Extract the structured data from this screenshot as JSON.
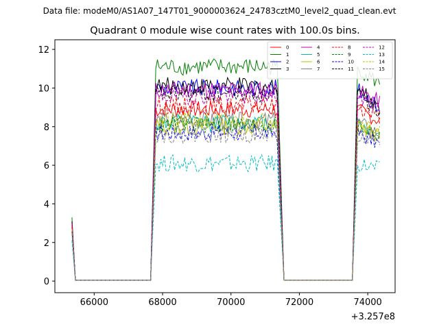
{
  "suptitle": "Data file: modeM0/AS1A07_147T01_9000003624_24783cztM0_level2_quad_clean.evt",
  "chart_data": {
    "type": "line",
    "title": "Quadrant 0 module wise count rates with 100.0s bins.",
    "xlabel": "",
    "ylabel": "",
    "x_offset_label": "+3.257e8",
    "xlim": [
      64850,
      74800
    ],
    "ylim": [
      -0.6,
      12.5
    ],
    "x_ticks": [
      66000,
      68000,
      70000,
      72000,
      74000
    ],
    "x_tick_labels": [
      "66000",
      "68000",
      "70000",
      "72000",
      "74000"
    ],
    "y_ticks": [
      0,
      2,
      4,
      6,
      8,
      10,
      12
    ],
    "y_tick_labels": [
      "0",
      "2",
      "4",
      "6",
      "8",
      "10",
      "12"
    ],
    "grid": false,
    "legend_position": "top-right",
    "legend_columns": 4,
    "segments": [
      {
        "x_start": 65350,
        "x_end": 65450
      },
      {
        "x_start": 67750,
        "x_end": 71350
      },
      {
        "x_start": 71350,
        "x_end": 71550
      },
      {
        "x_start": 73550,
        "x_end": 73650
      },
      {
        "x_start": 73650,
        "x_end": 74350
      }
    ],
    "series": [
      {
        "name": "0",
        "color": "#ff0000",
        "dash": false,
        "start": 2.8,
        "level": 8.9,
        "end_level": 8.3
      },
      {
        "name": "1",
        "color": "#008000",
        "dash": false,
        "start": 3.3,
        "level": 11.1,
        "end_level": 10.2
      },
      {
        "name": "2",
        "color": "#0000ff",
        "dash": false,
        "start": 3.0,
        "level": 10.0,
        "end_level": 9.0
      },
      {
        "name": "3",
        "color": "#000000",
        "dash": false,
        "start": 3.1,
        "level": 10.1,
        "end_level": 9.0
      },
      {
        "name": "4",
        "color": "#bf00bf",
        "dash": false,
        "start": 3.0,
        "level": 9.9,
        "end_level": 9.3
      },
      {
        "name": "5",
        "color": "#00bfa0",
        "dash": false,
        "start": 2.7,
        "level": 8.2,
        "end_level": 7.6
      },
      {
        "name": "6",
        "color": "#bfbf00",
        "dash": false,
        "start": 2.6,
        "level": 8.0,
        "end_level": 7.5
      },
      {
        "name": "7",
        "color": "#808080",
        "dash": false,
        "start": 2.6,
        "level": 8.3,
        "end_level": 7.6
      },
      {
        "name": "8",
        "color": "#ff0000",
        "dash": true,
        "start": 2.9,
        "level": 9.1,
        "end_level": 8.5
      },
      {
        "name": "9",
        "color": "#008000",
        "dash": true,
        "start": 2.6,
        "level": 8.1,
        "end_level": 7.5
      },
      {
        "name": "10",
        "color": "#0000ff",
        "dash": true,
        "start": 2.5,
        "level": 7.7,
        "end_level": 7.1
      },
      {
        "name": "11",
        "color": "#000000",
        "dash": true,
        "start": 3.0,
        "level": 9.7,
        "end_level": 8.8
      },
      {
        "name": "12",
        "color": "#bf00bf",
        "dash": true,
        "start": 3.0,
        "level": 9.6,
        "end_level": 9.0
      },
      {
        "name": "13",
        "color": "#00bfbf",
        "dash": true,
        "start": 2.1,
        "level": 6.1,
        "end_level": 5.8
      },
      {
        "name": "14",
        "color": "#bfbf00",
        "dash": true,
        "start": 2.7,
        "level": 8.3,
        "end_level": 7.8
      },
      {
        "name": "15",
        "color": "#808080",
        "dash": true,
        "start": 2.5,
        "level": 7.6,
        "end_level": 7.0
      }
    ]
  }
}
